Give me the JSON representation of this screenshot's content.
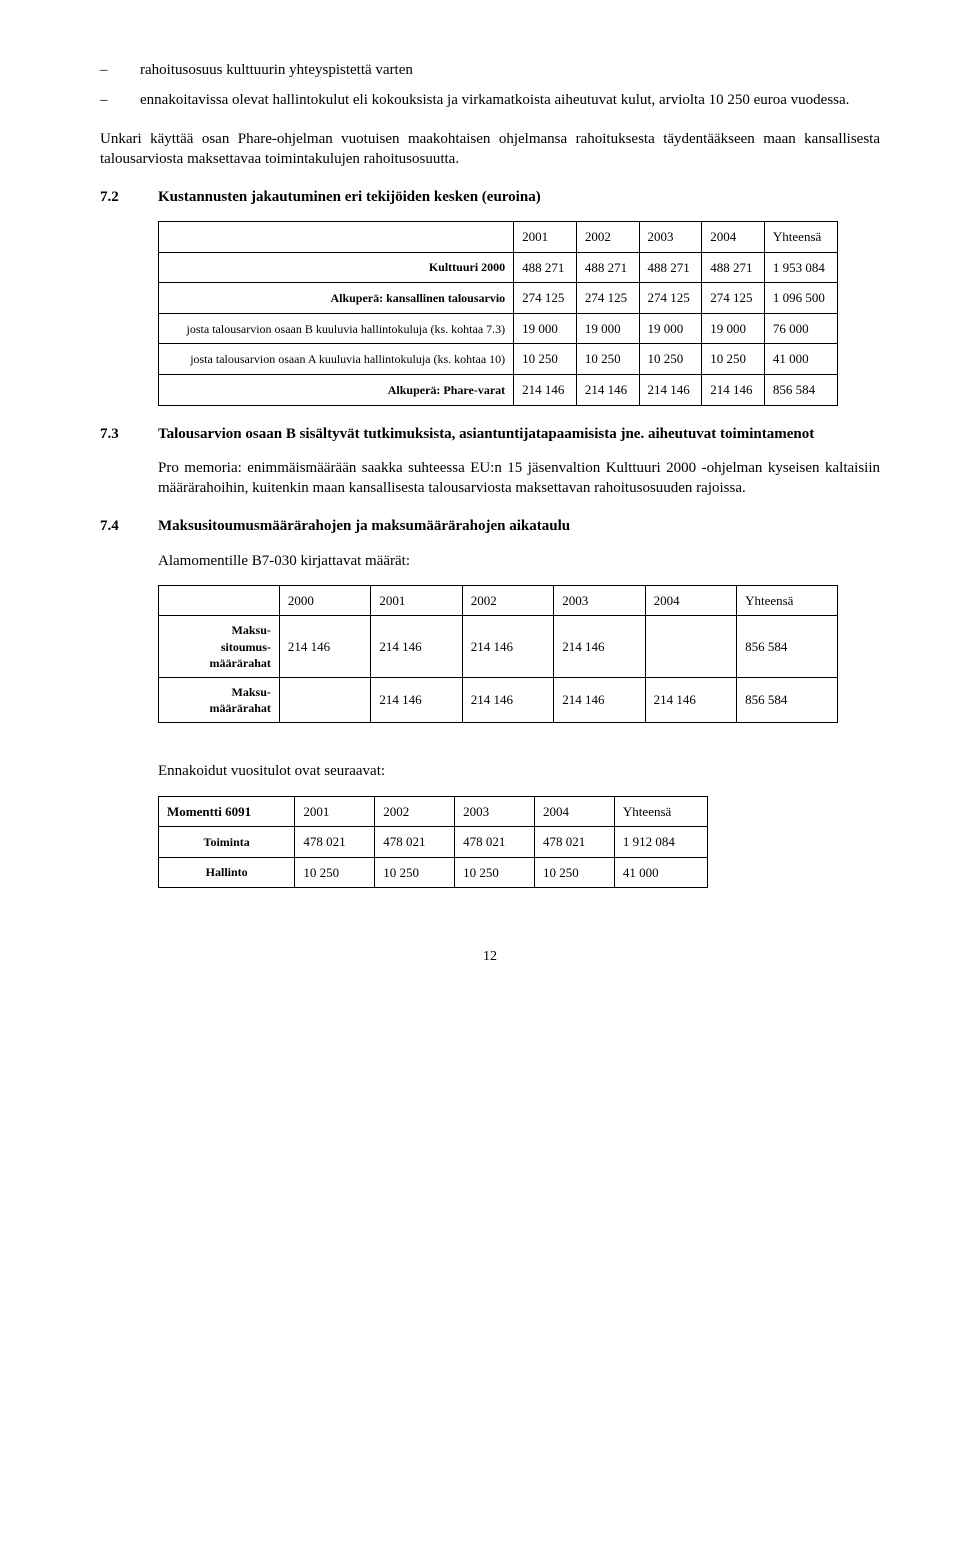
{
  "bullets": [
    {
      "dash": "–",
      "text": "rahoitusosuus kulttuurin yhteyspistettä varten"
    },
    {
      "dash": "–",
      "text": "ennakoitavissa olevat hallintokulut eli kokouksista ja virkamatkoista aiheutuvat kulut, arviolta 10 250 euroa vuodessa."
    }
  ],
  "para1": "Unkari käyttää osan Phare-ohjelman vuotuisen maakohtaisen ohjelmansa rahoituksesta täydentääkseen maan kansallisesta talousarviosta maksettavaa toimintakulujen rahoitusosuutta.",
  "sec72": {
    "num": "7.2",
    "title": "Kustannusten jakautuminen eri tekijöiden kesken (euroina)"
  },
  "table1": {
    "headers": [
      "",
      "2001",
      "2002",
      "2003",
      "2004",
      "Yhteensä"
    ],
    "rows": [
      {
        "label": "Kulttuuri 2000",
        "bold": true,
        "cells": [
          "488 271",
          "488 271",
          "488 271",
          "488 271",
          "1 953 084"
        ]
      },
      {
        "label": "Alkuperä: kansallinen talousarvio",
        "bold": true,
        "cells": [
          "274 125",
          "274 125",
          "274 125",
          "274 125",
          "1 096 500"
        ]
      },
      {
        "label": "josta talousarvion osaan B kuuluvia hallintokuluja (ks. kohtaa 7.3)",
        "bold": false,
        "cells": [
          "19 000",
          "19 000",
          "19 000",
          "19 000",
          "76 000"
        ]
      },
      {
        "label": "josta talousarvion osaan A kuuluvia hallintokuluja (ks. kohtaa 10)",
        "bold": false,
        "cells": [
          "10 250",
          "10 250",
          "10 250",
          "10 250",
          "41 000"
        ]
      },
      {
        "label": "Alkuperä: Phare-varat",
        "bold": true,
        "cells": [
          "214 146",
          "214 146",
          "214 146",
          "214 146",
          "856 584"
        ]
      }
    ]
  },
  "sec73": {
    "num": "7.3",
    "title": "Talousarvion osaan B sisältyvät tutkimuksista, asiantuntijatapaamisista jne. aiheutuvat toimintamenot"
  },
  "para73": "Pro memoria: enimmäismäärään saakka suhteessa EU:n 15 jäsenvaltion Kulttuuri 2000 -ohjelman kyseisen kaltaisiin määrärahoihin, kuitenkin maan kansallisesta talousarviosta maksettavan rahoitusosuuden rajoissa.",
  "sec74": {
    "num": "7.4",
    "title": "Maksusitoumusmäärärahojen ja maksumäärärahojen aikataulu"
  },
  "sub74": "Alamomentille B7-030 kirjattavat määrät:",
  "table2": {
    "headers": [
      "",
      "2000",
      "2001",
      "2002",
      "2003",
      "2004",
      "Yhteensä"
    ],
    "rows": [
      {
        "label": "Maksu-\nsitoumus-\nmäärärahat",
        "cells": [
          "214 146",
          "214 146",
          "214 146",
          "214 146",
          "",
          "856 584"
        ]
      },
      {
        "label": "Maksu-\nmäärärahat",
        "cells": [
          "",
          "214 146",
          "214 146",
          "214 146",
          "214 146",
          "856 584"
        ]
      }
    ]
  },
  "para_income": "Ennakoidut vuositulot ovat seuraavat:",
  "table3": {
    "headers": [
      "Momentti 6091",
      "2001",
      "2002",
      "2003",
      "2004",
      "Yhteensä"
    ],
    "rows": [
      {
        "label": "Toiminta",
        "cells": [
          "478 021",
          "478 021",
          "478 021",
          "478 021",
          "1 912 084"
        ]
      },
      {
        "label": "Hallinto",
        "cells": [
          "10 250",
          "10 250",
          "10 250",
          "10 250",
          "41 000"
        ]
      }
    ]
  },
  "pageNum": "12"
}
